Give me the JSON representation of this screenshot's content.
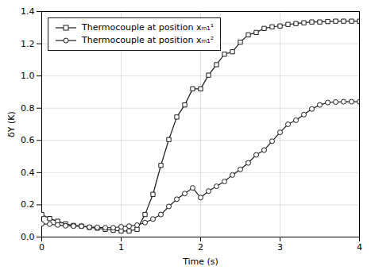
{
  "chart_data": {
    "type": "line",
    "xlabel": "Time (s)",
    "ylabel": "δY (K)",
    "x": [
      0.0,
      0.1,
      0.2,
      0.3,
      0.4,
      0.5,
      0.6,
      0.7,
      0.8,
      0.9,
      1.0,
      1.1,
      1.2,
      1.3,
      1.4,
      1.5,
      1.6,
      1.7,
      1.8,
      1.9,
      2.0,
      2.1,
      2.2,
      2.3,
      2.4,
      2.5,
      2.6,
      2.7,
      2.8,
      2.9,
      3.0,
      3.1,
      3.2,
      3.3,
      3.4,
      3.5,
      3.6,
      3.7,
      3.8,
      3.9,
      4.0
    ],
    "series": [
      {
        "name": "Thermocouple at position xₘ₁¹",
        "color": "#1a1a1a",
        "marker": "square",
        "values": [
          0.14,
          0.115,
          0.098,
          0.082,
          0.072,
          0.068,
          0.06,
          0.055,
          0.048,
          0.042,
          0.038,
          0.038,
          0.048,
          0.14,
          0.265,
          0.445,
          0.605,
          0.745,
          0.82,
          0.92,
          0.92,
          1.005,
          1.07,
          1.135,
          1.15,
          1.21,
          1.255,
          1.27,
          1.295,
          1.305,
          1.31,
          1.32,
          1.325,
          1.33,
          1.335,
          1.335,
          1.338,
          1.34,
          1.34,
          1.34,
          1.34
        ]
      },
      {
        "name": "Thermocouple at position xₘ₁²",
        "color": "#1a1a1a",
        "marker": "circle",
        "values": [
          0.082,
          0.08,
          0.075,
          0.07,
          0.068,
          0.067,
          0.062,
          0.06,
          0.058,
          0.058,
          0.064,
          0.068,
          0.074,
          0.09,
          0.112,
          0.14,
          0.19,
          0.235,
          0.27,
          0.305,
          0.245,
          0.285,
          0.315,
          0.345,
          0.385,
          0.42,
          0.46,
          0.51,
          0.54,
          0.595,
          0.65,
          0.7,
          0.725,
          0.76,
          0.795,
          0.82,
          0.835,
          0.838,
          0.84,
          0.84,
          0.84
        ]
      }
    ],
    "xlim": [
      0,
      4
    ],
    "ylim": [
      0,
      1.4
    ],
    "xticks": [
      0,
      1,
      2,
      3,
      4
    ],
    "yticks": [
      {
        "value": 0,
        "label": "0.0"
      },
      0.2,
      0.4,
      0.6,
      0.8,
      {
        "value": 1,
        "label": "1.0"
      },
      1.2,
      1.4
    ],
    "grid": true,
    "legend": "upper left"
  }
}
